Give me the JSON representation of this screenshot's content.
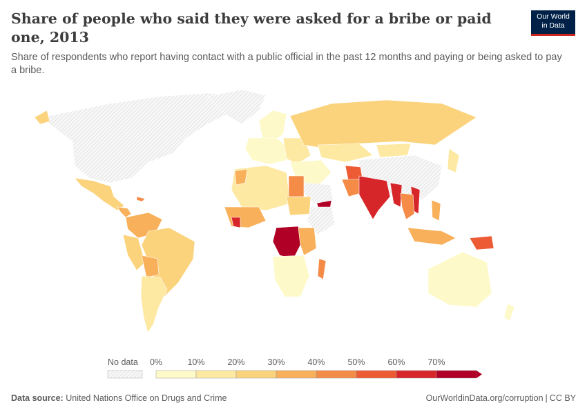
{
  "header": {
    "title": "Share of people who said they were asked for a bribe or paid one, 2013",
    "subtitle": "Share of respondents who report having contact with a public official in the past 12 months and paying or being asked to pay a bribe."
  },
  "logo": {
    "line1": "Our World",
    "line2": "in Data"
  },
  "legend": {
    "no_data_label": "No data",
    "bins": [
      {
        "label": "0%",
        "color": "#fef9c8"
      },
      {
        "label": "10%",
        "color": "#fde9a2"
      },
      {
        "label": "20%",
        "color": "#fbd37d"
      },
      {
        "label": "30%",
        "color": "#f8b05b"
      },
      {
        "label": "40%",
        "color": "#f48b47"
      },
      {
        "label": "50%",
        "color": "#ec5b33"
      },
      {
        "label": "60%",
        "color": "#d7262a"
      },
      {
        "label": "70%",
        "color": "#b10026"
      }
    ]
  },
  "footer": {
    "source_label": "Data source:",
    "source_text": "United Nations Office on Drugs and Crime",
    "link_text": "OurWorldinData.org/corruption",
    "separator": "|",
    "license": "CC BY"
  }
}
